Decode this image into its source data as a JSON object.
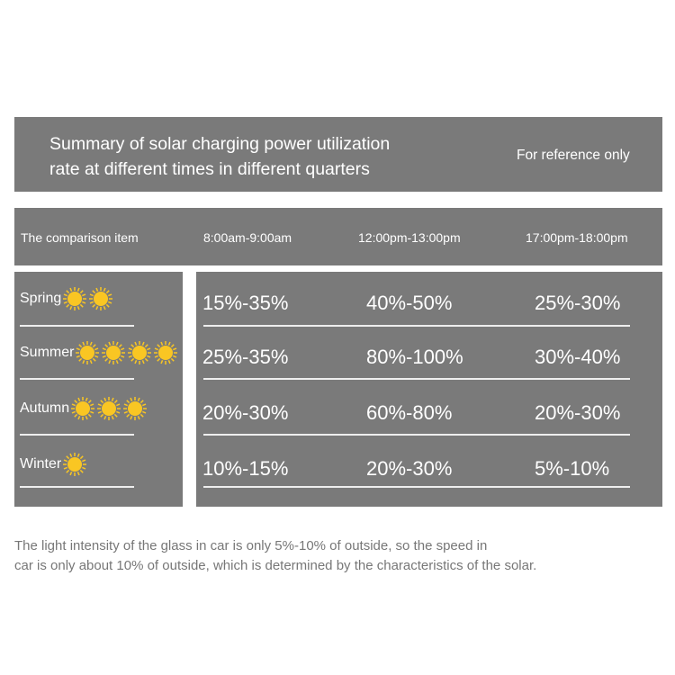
{
  "title": "Summary of solar charging power utilization rate at different times in different quarters",
  "title_lines": [
    "Summary of solar charging power utilization",
    "rate at different times in different quarters"
  ],
  "reference_note": "For reference only",
  "columns": [
    "The comparison item",
    "8:00am-9:00am",
    "12:00pm-13:00pm",
    "17:00pm-18:00pm"
  ],
  "rows": [
    {
      "season": "Spring",
      "suns": 2,
      "values": [
        "15%-35%",
        "40%-50%",
        "25%-30%"
      ]
    },
    {
      "season": "Summer",
      "suns": 4,
      "values": [
        "25%-35%",
        "80%-100%",
        "30%-40%"
      ]
    },
    {
      "season": "Autumn",
      "suns": 3,
      "values": [
        "20%-30%",
        "60%-80%",
        "20%-30%"
      ]
    },
    {
      "season": "Winter",
      "suns": 1,
      "values": [
        "10%-15%",
        "20%-30%",
        "5%-10%"
      ]
    }
  ],
  "footnote_lines": [
    "The light intensity of the glass in car is only 5%-10% of outside, so the speed in",
    "car is only about 10% of outside, which is determined by the characteristics of the solar."
  ],
  "colors": {
    "panel": "#7a7a7a",
    "sun": "#f9c623",
    "footnote": "#777777"
  }
}
